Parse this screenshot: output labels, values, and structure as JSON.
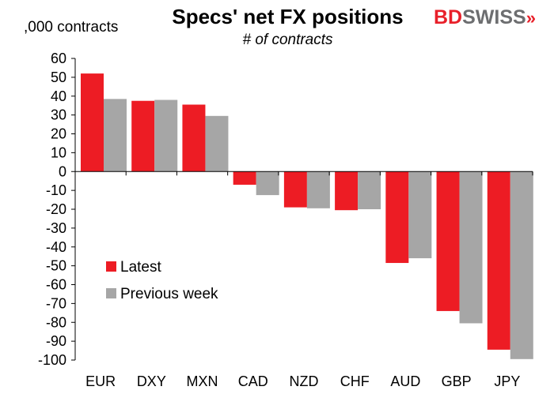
{
  "chart_data": {
    "type": "bar",
    "title": "Specs' net FX positions",
    "subtitle": "# of contracts",
    "ylabel": ",000 contracts",
    "categories": [
      "EUR",
      "DXY",
      "MXN",
      "CAD",
      "NZD",
      "CHF",
      "AUD",
      "GBP",
      "JPY"
    ],
    "series": [
      {
        "name": "Latest",
        "color": "#ed1c24",
        "values": [
          52,
          37.5,
          35.5,
          -7,
          -19,
          -20.5,
          -48.5,
          -74,
          -94.5
        ]
      },
      {
        "name": "Previous week",
        "color": "#a6a6a6",
        "values": [
          38.5,
          38,
          29.5,
          -12.5,
          -19.5,
          -20,
          -46,
          -80.5,
          -99.5
        ]
      }
    ],
    "ylim": [
      -100,
      60
    ],
    "yticks": [
      60,
      50,
      40,
      30,
      20,
      10,
      0,
      -10,
      -20,
      -30,
      -40,
      -50,
      -60,
      -70,
      -80,
      -90,
      -100
    ],
    "grid": false,
    "legend_position": "lower-left"
  },
  "brand": {
    "part1": "BD",
    "part2": "SWISS",
    "arrow": "»"
  }
}
